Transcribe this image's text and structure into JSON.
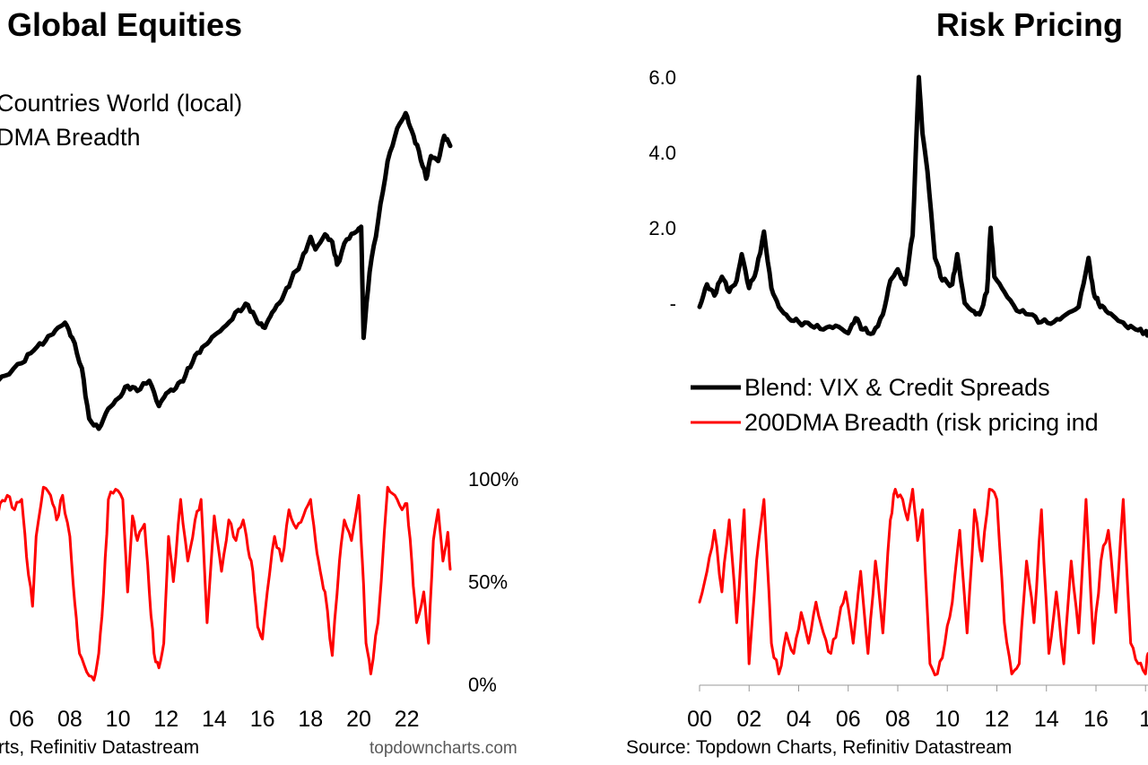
{
  "chart_data": [
    {
      "type": "line",
      "title": "Global Equities",
      "legend": [
        "Countries World (local)",
        "DMA Breadth"
      ],
      "x_ticks": [
        "06",
        "08",
        "10",
        "12",
        "14",
        "16",
        "18",
        "20",
        "22"
      ],
      "xlim": [
        2004.8,
        2023.8
      ],
      "breadth_ticks": [
        "100%",
        "50%",
        "0%"
      ],
      "breadth_ylim": [
        0,
        100
      ],
      "source": "rts, Refinitiv Datastream",
      "credit": "topdowncharts.com",
      "colors": {
        "price": "#000000",
        "breadth": "#ff0000"
      },
      "series": [
        {
          "name": "Countries World (local)",
          "x": [
            2004.8,
            2005.3,
            2006.0,
            2006.5,
            2007.0,
            2007.4,
            2007.8,
            2008.1,
            2008.5,
            2008.8,
            2009.2,
            2009.6,
            2010.0,
            2010.4,
            2010.8,
            2011.3,
            2011.7,
            2012.0,
            2012.4,
            2012.8,
            2013.2,
            2013.6,
            2014.0,
            2014.5,
            2015.0,
            2015.4,
            2015.8,
            2016.1,
            2016.4,
            2016.8,
            2017.2,
            2017.6,
            2018.0,
            2018.2,
            2018.6,
            2018.9,
            2019.1,
            2019.5,
            2019.9,
            2020.1,
            2020.2,
            2020.45,
            2020.8,
            2021.2,
            2021.6,
            2021.95,
            2022.2,
            2022.5,
            2022.8,
            2023.0,
            2023.3,
            2023.55,
            2023.8
          ],
          "values": [
            44,
            47,
            52,
            57,
            61,
            65,
            68,
            62,
            50,
            30,
            26,
            34,
            38,
            43,
            41,
            45,
            35,
            40,
            42,
            47,
            55,
            59,
            63,
            67,
            73,
            75,
            68,
            66,
            72,
            77,
            85,
            92,
            102,
            97,
            103,
            100,
            91,
            101,
            104,
            106,
            62,
            88,
            108,
            132,
            145,
            151,
            144,
            136,
            125,
            134,
            132,
            142,
            138
          ]
        },
        {
          "name": "DMA Breadth",
          "x": [
            2004.8,
            2005.1,
            2005.4,
            2005.7,
            2006.0,
            2006.2,
            2006.45,
            2006.6,
            2006.9,
            2007.2,
            2007.45,
            2007.7,
            2008.0,
            2008.2,
            2008.4,
            2008.7,
            2009.0,
            2009.2,
            2009.4,
            2009.6,
            2009.9,
            2010.2,
            2010.4,
            2010.6,
            2010.8,
            2011.1,
            2011.3,
            2011.5,
            2011.7,
            2011.9,
            2012.1,
            2012.3,
            2012.6,
            2012.9,
            2013.2,
            2013.45,
            2013.7,
            2014.0,
            2014.3,
            2014.6,
            2014.9,
            2015.2,
            2015.4,
            2015.6,
            2015.8,
            2016.0,
            2016.2,
            2016.5,
            2016.8,
            2017.1,
            2017.4,
            2017.7,
            2018.0,
            2018.2,
            2018.4,
            2018.6,
            2018.9,
            2019.2,
            2019.4,
            2019.7,
            2020.0,
            2020.15,
            2020.3,
            2020.5,
            2020.8,
            2021.2,
            2021.5,
            2021.8,
            2022.0,
            2022.2,
            2022.4,
            2022.7,
            2022.9,
            2023.1,
            2023.3,
            2023.5,
            2023.7,
            2023.8
          ],
          "values": [
            70,
            88,
            92,
            85,
            90,
            62,
            38,
            72,
            96,
            92,
            80,
            92,
            72,
            40,
            15,
            6,
            2,
            15,
            45,
            90,
            95,
            90,
            45,
            82,
            70,
            78,
            45,
            15,
            8,
            20,
            72,
            50,
            90,
            60,
            80,
            90,
            30,
            82,
            55,
            80,
            70,
            80,
            66,
            55,
            28,
            22,
            45,
            72,
            60,
            85,
            76,
            82,
            90,
            70,
            55,
            45,
            14,
            60,
            80,
            70,
            92,
            60,
            20,
            5,
            30,
            96,
            92,
            85,
            88,
            60,
            30,
            45,
            20,
            70,
            85,
            60,
            74,
            56
          ]
        }
      ]
    },
    {
      "type": "line",
      "title": "Risk Pricing",
      "legend": [
        "Blend: VIX & Credit Spreads",
        "200DMA Breadth (risk pricing ind"
      ],
      "x_ticks": [
        "00",
        "02",
        "04",
        "06",
        "08",
        "10",
        "12",
        "14",
        "16",
        "1"
      ],
      "xlim": [
        2000,
        2018.1
      ],
      "y_ticks": [
        "6.0",
        "4.0",
        "2.0",
        "-"
      ],
      "ylim": [
        -1,
        6
      ],
      "source": "Source: Topdown Charts, Refinitiv Datastream",
      "colors": {
        "blend": "#000000",
        "breadth": "#ff0000"
      },
      "series": [
        {
          "name": "Blend: VIX & Credit Spreads",
          "x": [
            2000.0,
            2000.3,
            2000.6,
            2000.9,
            2001.2,
            2001.5,
            2001.7,
            2002.0,
            2002.3,
            2002.6,
            2002.9,
            2003.2,
            2003.6,
            2004.0,
            2004.5,
            2005.0,
            2005.5,
            2006.0,
            2006.3,
            2006.6,
            2007.0,
            2007.4,
            2007.7,
            2008.0,
            2008.3,
            2008.6,
            2008.85,
            2009.0,
            2009.2,
            2009.5,
            2009.8,
            2010.2,
            2010.4,
            2010.7,
            2011.0,
            2011.3,
            2011.6,
            2011.75,
            2011.9,
            2012.3,
            2012.8,
            2013.3,
            2013.8,
            2014.3,
            2014.8,
            2015.3,
            2015.7,
            2015.9,
            2016.1,
            2016.4,
            2016.8,
            2017.2,
            2017.6,
            2018.0,
            2018.1
          ],
          "values": [
            -0.1,
            0.5,
            0.2,
            0.7,
            0.3,
            0.6,
            1.3,
            0.4,
            0.9,
            1.9,
            0.4,
            -0.1,
            -0.4,
            -0.5,
            -0.6,
            -0.7,
            -0.6,
            -0.8,
            -0.4,
            -0.7,
            -0.8,
            -0.3,
            0.6,
            0.9,
            0.5,
            1.8,
            6.0,
            4.5,
            3.5,
            1.2,
            0.6,
            0.5,
            1.3,
            0.0,
            -0.2,
            -0.3,
            0.3,
            2.0,
            0.7,
            0.3,
            -0.2,
            -0.3,
            -0.5,
            -0.5,
            -0.3,
            -0.1,
            1.2,
            0.3,
            0.0,
            -0.2,
            -0.4,
            -0.6,
            -0.7,
            -0.8,
            -0.8
          ]
        },
        {
          "name": "200DMA Breadth (risk pricing ind",
          "x": [
            2000.0,
            2000.3,
            2000.6,
            2000.9,
            2001.2,
            2001.5,
            2001.8,
            2002.0,
            2002.3,
            2002.6,
            2002.9,
            2003.2,
            2003.5,
            2003.8,
            2004.1,
            2004.4,
            2004.7,
            2005.0,
            2005.3,
            2005.6,
            2005.9,
            2006.2,
            2006.5,
            2006.8,
            2007.1,
            2007.4,
            2007.7,
            2007.9,
            2008.2,
            2008.4,
            2008.6,
            2008.8,
            2009.0,
            2009.3,
            2009.6,
            2009.9,
            2010.2,
            2010.5,
            2010.8,
            2011.1,
            2011.4,
            2011.7,
            2012.0,
            2012.3,
            2012.6,
            2012.9,
            2013.2,
            2013.5,
            2013.8,
            2014.1,
            2014.4,
            2014.7,
            2015.0,
            2015.3,
            2015.6,
            2015.9,
            2016.2,
            2016.5,
            2016.8,
            2017.1,
            2017.4,
            2017.7,
            2018.0,
            2018.1
          ],
          "values": [
            40,
            55,
            75,
            45,
            80,
            30,
            85,
            10,
            60,
            90,
            20,
            5,
            25,
            15,
            35,
            20,
            40,
            25,
            15,
            30,
            45,
            20,
            55,
            15,
            60,
            25,
            80,
            95,
            90,
            80,
            95,
            70,
            85,
            10,
            5,
            20,
            40,
            75,
            25,
            85,
            60,
            95,
            90,
            30,
            5,
            10,
            60,
            30,
            85,
            15,
            45,
            10,
            60,
            25,
            90,
            20,
            60,
            75,
            35,
            90,
            20,
            10,
            5,
            15
          ]
        }
      ]
    }
  ]
}
